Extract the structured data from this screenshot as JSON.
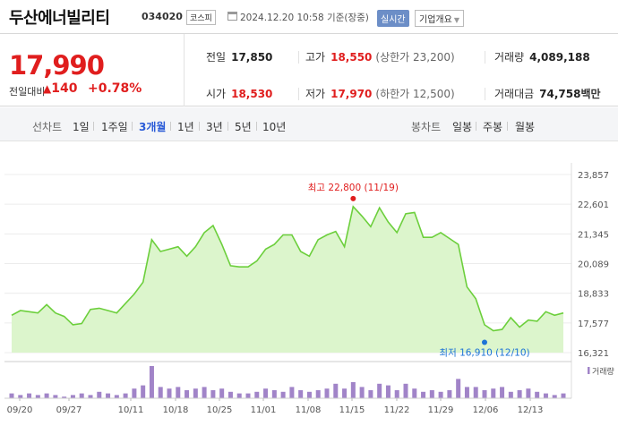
{
  "header": {
    "name": "두산에너빌리티",
    "code": "034020",
    "market": "코스피",
    "datetime": "2024.12.20 10:58 기준(장중)",
    "realtime": "실시간",
    "overview": "기업개요"
  },
  "quote": {
    "price": "17,990",
    "change_label": "전일대비",
    "change_arrow": "▲",
    "change": "140",
    "change_pct": "+0.78%",
    "prev_close": {
      "label": "전일",
      "value": "17,850"
    },
    "high": {
      "label": "고가",
      "value": "18,550",
      "sub": "(상한가 23,200)"
    },
    "volume": {
      "label": "거래량",
      "value": "4,089,188"
    },
    "open": {
      "label": "시가",
      "value": "18,530"
    },
    "low": {
      "label": "저가",
      "value": "17,970",
      "sub": "(하한가 12,500)"
    },
    "amount": {
      "label": "거래대금",
      "value": "74,758",
      "unit": "백만"
    }
  },
  "tabs": {
    "line_title": "선차트",
    "line_periods": [
      "1일",
      "1주일",
      "3개월",
      "1년",
      "3년",
      "5년",
      "10년"
    ],
    "active": "3개월",
    "candle_title": "봉차트",
    "candle_periods": [
      "일봉",
      "주봉",
      "월봉"
    ]
  },
  "colors": {
    "up": "#e01e1e",
    "line": "#6ccf3c",
    "fill": "#dcf5cc",
    "volume": "#a184c8",
    "active_tab": "#2a5bd7",
    "low_marker": "#1e74d6"
  },
  "chart_data": {
    "type": "area",
    "y_ticks": [
      "23,857",
      "22,601",
      "21,345",
      "20,089",
      "18,833",
      "17,577",
      "16,321"
    ],
    "ylim": [
      16321,
      23857
    ],
    "x_ticks": [
      "09/20",
      "09/27",
      "10/11",
      "10/18",
      "10/25",
      "11/01",
      "11/08",
      "11/15",
      "11/22",
      "11/29",
      "12/06",
      "12/13"
    ],
    "high_annotation": {
      "label": "최고 22,800 (11/19)",
      "value": 22800,
      "index": 39
    },
    "low_annotation": {
      "label": "최저 16,910 (12/10)",
      "value": 16910,
      "index": 54
    },
    "volume_label": "거래량",
    "prices": [
      17900,
      18100,
      18050,
      18000,
      18350,
      18000,
      17850,
      17500,
      17550,
      18150,
      18200,
      18100,
      18000,
      18400,
      18800,
      19300,
      21100,
      20600,
      20700,
      20800,
      20400,
      20800,
      21400,
      21700,
      20900,
      20000,
      19950,
      19950,
      20200,
      20700,
      20900,
      21300,
      21300,
      20600,
      20400,
      21100,
      21300,
      21450,
      20800,
      22500,
      22100,
      21650,
      22450,
      21850,
      21400,
      22200,
      22250,
      21200,
      21200,
      21400,
      21150,
      20900,
      19100,
      18600,
      17500,
      17250,
      17300,
      17800,
      17400,
      17700,
      17650,
      18050,
      17900,
      18000
    ],
    "volumes": [
      3,
      2,
      3,
      2,
      3,
      2,
      1,
      2,
      3,
      2,
      4,
      3,
      2,
      3,
      6,
      8,
      20,
      7,
      6,
      7,
      5,
      6,
      7,
      5,
      6,
      4,
      3,
      3,
      4,
      6,
      5,
      4,
      7,
      5,
      4,
      5,
      6,
      9,
      6,
      10,
      7,
      5,
      9,
      8,
      5,
      9,
      6,
      4,
      5,
      4,
      5,
      12,
      7,
      7,
      5,
      6,
      7,
      4,
      5,
      6,
      4,
      3,
      2,
      3
    ]
  }
}
